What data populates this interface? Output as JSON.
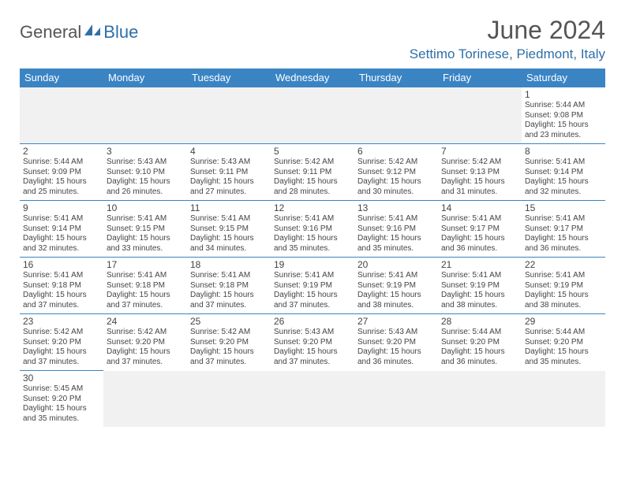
{
  "logo": {
    "part1": "General",
    "part2": "Blue"
  },
  "title": "June 2024",
  "location": "Settimo Torinese, Piedmont, Italy",
  "colors": {
    "header_bg": "#3a84c4",
    "accent": "#2f6fa8",
    "text": "#444444"
  },
  "weekdays": [
    "Sunday",
    "Monday",
    "Tuesday",
    "Wednesday",
    "Thursday",
    "Friday",
    "Saturday"
  ],
  "weeks": [
    [
      null,
      null,
      null,
      null,
      null,
      null,
      {
        "n": "1",
        "sr": "Sunrise: 5:44 AM",
        "ss": "Sunset: 9:08 PM",
        "dl": "Daylight: 15 hours and 23 minutes."
      }
    ],
    [
      {
        "n": "2",
        "sr": "Sunrise: 5:44 AM",
        "ss": "Sunset: 9:09 PM",
        "dl": "Daylight: 15 hours and 25 minutes."
      },
      {
        "n": "3",
        "sr": "Sunrise: 5:43 AM",
        "ss": "Sunset: 9:10 PM",
        "dl": "Daylight: 15 hours and 26 minutes."
      },
      {
        "n": "4",
        "sr": "Sunrise: 5:43 AM",
        "ss": "Sunset: 9:11 PM",
        "dl": "Daylight: 15 hours and 27 minutes."
      },
      {
        "n": "5",
        "sr": "Sunrise: 5:42 AM",
        "ss": "Sunset: 9:11 PM",
        "dl": "Daylight: 15 hours and 28 minutes."
      },
      {
        "n": "6",
        "sr": "Sunrise: 5:42 AM",
        "ss": "Sunset: 9:12 PM",
        "dl": "Daylight: 15 hours and 30 minutes."
      },
      {
        "n": "7",
        "sr": "Sunrise: 5:42 AM",
        "ss": "Sunset: 9:13 PM",
        "dl": "Daylight: 15 hours and 31 minutes."
      },
      {
        "n": "8",
        "sr": "Sunrise: 5:41 AM",
        "ss": "Sunset: 9:14 PM",
        "dl": "Daylight: 15 hours and 32 minutes."
      }
    ],
    [
      {
        "n": "9",
        "sr": "Sunrise: 5:41 AM",
        "ss": "Sunset: 9:14 PM",
        "dl": "Daylight: 15 hours and 32 minutes."
      },
      {
        "n": "10",
        "sr": "Sunrise: 5:41 AM",
        "ss": "Sunset: 9:15 PM",
        "dl": "Daylight: 15 hours and 33 minutes."
      },
      {
        "n": "11",
        "sr": "Sunrise: 5:41 AM",
        "ss": "Sunset: 9:15 PM",
        "dl": "Daylight: 15 hours and 34 minutes."
      },
      {
        "n": "12",
        "sr": "Sunrise: 5:41 AM",
        "ss": "Sunset: 9:16 PM",
        "dl": "Daylight: 15 hours and 35 minutes."
      },
      {
        "n": "13",
        "sr": "Sunrise: 5:41 AM",
        "ss": "Sunset: 9:16 PM",
        "dl": "Daylight: 15 hours and 35 minutes."
      },
      {
        "n": "14",
        "sr": "Sunrise: 5:41 AM",
        "ss": "Sunset: 9:17 PM",
        "dl": "Daylight: 15 hours and 36 minutes."
      },
      {
        "n": "15",
        "sr": "Sunrise: 5:41 AM",
        "ss": "Sunset: 9:17 PM",
        "dl": "Daylight: 15 hours and 36 minutes."
      }
    ],
    [
      {
        "n": "16",
        "sr": "Sunrise: 5:41 AM",
        "ss": "Sunset: 9:18 PM",
        "dl": "Daylight: 15 hours and 37 minutes."
      },
      {
        "n": "17",
        "sr": "Sunrise: 5:41 AM",
        "ss": "Sunset: 9:18 PM",
        "dl": "Daylight: 15 hours and 37 minutes."
      },
      {
        "n": "18",
        "sr": "Sunrise: 5:41 AM",
        "ss": "Sunset: 9:18 PM",
        "dl": "Daylight: 15 hours and 37 minutes."
      },
      {
        "n": "19",
        "sr": "Sunrise: 5:41 AM",
        "ss": "Sunset: 9:19 PM",
        "dl": "Daylight: 15 hours and 37 minutes."
      },
      {
        "n": "20",
        "sr": "Sunrise: 5:41 AM",
        "ss": "Sunset: 9:19 PM",
        "dl": "Daylight: 15 hours and 38 minutes."
      },
      {
        "n": "21",
        "sr": "Sunrise: 5:41 AM",
        "ss": "Sunset: 9:19 PM",
        "dl": "Daylight: 15 hours and 38 minutes."
      },
      {
        "n": "22",
        "sr": "Sunrise: 5:41 AM",
        "ss": "Sunset: 9:19 PM",
        "dl": "Daylight: 15 hours and 38 minutes."
      }
    ],
    [
      {
        "n": "23",
        "sr": "Sunrise: 5:42 AM",
        "ss": "Sunset: 9:20 PM",
        "dl": "Daylight: 15 hours and 37 minutes."
      },
      {
        "n": "24",
        "sr": "Sunrise: 5:42 AM",
        "ss": "Sunset: 9:20 PM",
        "dl": "Daylight: 15 hours and 37 minutes."
      },
      {
        "n": "25",
        "sr": "Sunrise: 5:42 AM",
        "ss": "Sunset: 9:20 PM",
        "dl": "Daylight: 15 hours and 37 minutes."
      },
      {
        "n": "26",
        "sr": "Sunrise: 5:43 AM",
        "ss": "Sunset: 9:20 PM",
        "dl": "Daylight: 15 hours and 37 minutes."
      },
      {
        "n": "27",
        "sr": "Sunrise: 5:43 AM",
        "ss": "Sunset: 9:20 PM",
        "dl": "Daylight: 15 hours and 36 minutes."
      },
      {
        "n": "28",
        "sr": "Sunrise: 5:44 AM",
        "ss": "Sunset: 9:20 PM",
        "dl": "Daylight: 15 hours and 36 minutes."
      },
      {
        "n": "29",
        "sr": "Sunrise: 5:44 AM",
        "ss": "Sunset: 9:20 PM",
        "dl": "Daylight: 15 hours and 35 minutes."
      }
    ],
    [
      {
        "n": "30",
        "sr": "Sunrise: 5:45 AM",
        "ss": "Sunset: 9:20 PM",
        "dl": "Daylight: 15 hours and 35 minutes."
      },
      null,
      null,
      null,
      null,
      null,
      null
    ]
  ]
}
